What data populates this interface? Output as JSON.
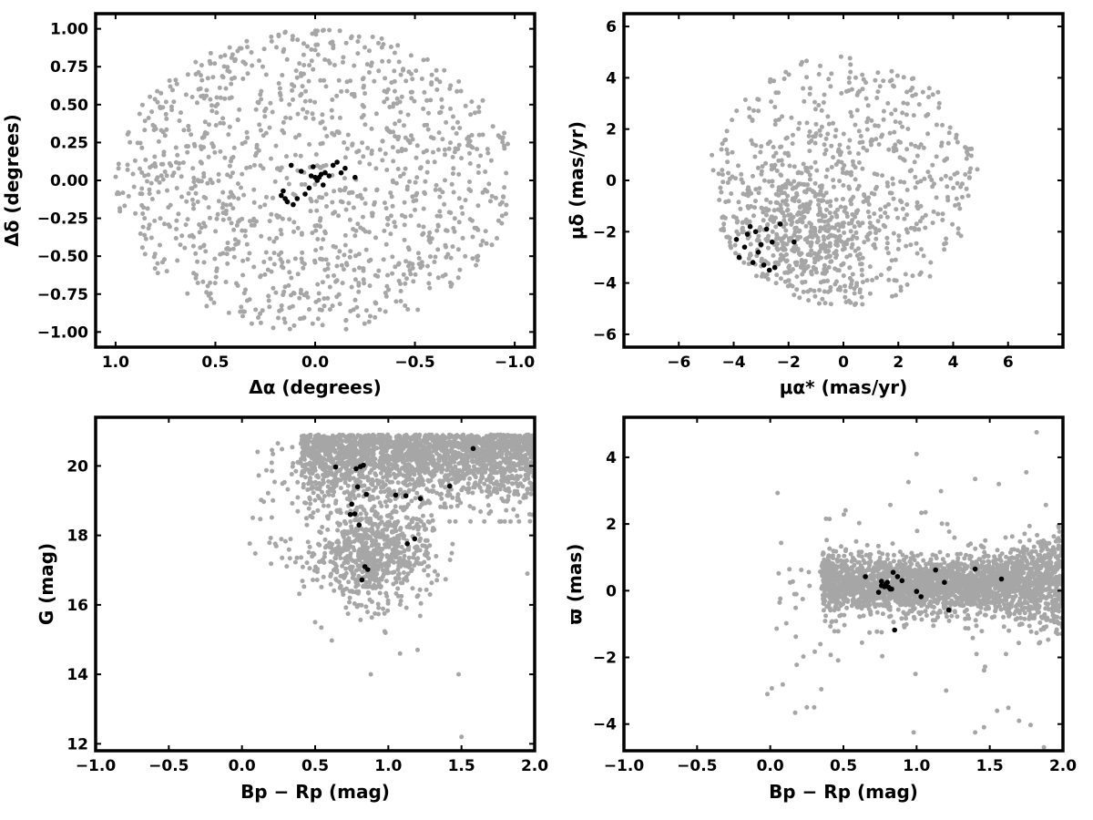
{
  "colors": {
    "field_stars": "#a6a6a6",
    "members": "#000000",
    "frame": "#000000",
    "background": "#ffffff"
  },
  "chart_data": [
    {
      "type": "scatter",
      "id": "sky-positions",
      "title": "",
      "xlabel": "Δα (degrees)",
      "ylabel": "Δδ (degrees)",
      "xlim": [
        1.1,
        -1.1
      ],
      "ylim": [
        -1.1,
        1.1
      ],
      "x_inverted": true,
      "xticks": [
        1.0,
        0.5,
        0.0,
        -0.5,
        -1.0
      ],
      "xtick_labels": [
        "1.0",
        "0.5",
        "0.0",
        "−0.5",
        "−1.0"
      ],
      "yticks": [
        1.0,
        0.75,
        0.5,
        0.25,
        0.0,
        -0.25,
        -0.5,
        -0.75,
        -1.0
      ],
      "ytick_labels": [
        "1.00",
        "0.75",
        "0.50",
        "0.25",
        "0.00",
        "−0.25",
        "−0.50",
        "−0.75",
        "−1.00"
      ],
      "field_distribution": {
        "shape": "disk",
        "center": [
          0.0,
          0.0
        ],
        "radius": 1.0,
        "n": 1200
      },
      "members": {
        "x": [
          0.17,
          0.15,
          0.14,
          0.11,
          0.09,
          0.05,
          0.03,
          -0.01,
          -0.02,
          -0.03,
          -0.05,
          -0.07,
          -0.09,
          -0.11,
          -0.13,
          -0.15,
          0.02,
          0.0,
          -0.2,
          0.12,
          0.07,
          0.01,
          -0.04,
          0.16
        ],
        "y": [
          -0.1,
          -0.12,
          -0.14,
          -0.16,
          -0.12,
          -0.09,
          -0.05,
          0.0,
          0.02,
          0.04,
          0.05,
          0.03,
          0.1,
          0.12,
          0.05,
          0.08,
          0.03,
          0.02,
          0.02,
          0.1,
          0.06,
          0.09,
          -0.03,
          -0.07
        ]
      }
    },
    {
      "type": "scatter",
      "id": "proper-motions",
      "title": "",
      "xlabel": "μα* (mas/yr)",
      "ylabel": "μδ (mas/yr)",
      "xlim": [
        -8,
        8
      ],
      "ylim": [
        -6.5,
        6.5
      ],
      "xticks": [
        -6,
        -4,
        -2,
        0,
        2,
        4,
        6
      ],
      "xtick_labels": [
        "−6",
        "−4",
        "−2",
        "0",
        "2",
        "4",
        "6"
      ],
      "yticks": [
        6,
        4,
        2,
        0,
        -2,
        -4,
        -6
      ],
      "ytick_labels": [
        "6",
        "4",
        "2",
        "0",
        "−2",
        "−4",
        "−6"
      ],
      "field_distribution": {
        "shape": "disk",
        "center": [
          0.0,
          0.0
        ],
        "radius": 4.9,
        "n": 1100,
        "dense_center": [
          -1.5,
          -2.0
        ]
      },
      "members": {
        "x": [
          -3.9,
          -3.8,
          -3.5,
          -3.4,
          -3.3,
          -3.1,
          -3.0,
          -2.9,
          -2.8,
          -2.6,
          -2.5,
          -2.3,
          -1.8,
          -3.6,
          -3.2,
          -2.7
        ],
        "y": [
          -2.3,
          -3.0,
          -2.1,
          -1.8,
          -3.2,
          -2.8,
          -2.5,
          -3.3,
          -1.9,
          -2.4,
          -3.4,
          -1.7,
          -2.4,
          -2.6,
          -2.0,
          -3.5
        ]
      }
    },
    {
      "type": "scatter",
      "id": "color-magnitude",
      "title": "",
      "xlabel": "Bp − Rp (mag)",
      "ylabel": "G (mag)",
      "xlim": [
        -1.0,
        2.0
      ],
      "ylim": [
        11.8,
        21.4
      ],
      "xticks": [
        -1.0,
        -0.5,
        0.0,
        0.5,
        1.0,
        1.5,
        2.0
      ],
      "xtick_labels": [
        "−1.0",
        "−0.5",
        "0.0",
        "0.5",
        "1.0",
        "1.5",
        "2.0"
      ],
      "yticks": [
        20,
        18,
        16,
        14,
        12
      ],
      "ytick_labels": [
        "20",
        "18",
        "16",
        "14",
        "12"
      ],
      "members": {
        "x": [
          0.64,
          0.78,
          0.81,
          0.83,
          0.85,
          0.75,
          0.77,
          0.8,
          0.84,
          0.86,
          0.82,
          0.79,
          1.05,
          1.12,
          1.22,
          1.42,
          1.58,
          1.13,
          1.18,
          0.74
        ],
        "y": [
          19.97,
          19.92,
          19.98,
          20.02,
          19.18,
          18.9,
          18.62,
          18.3,
          17.1,
          17.02,
          16.72,
          19.4,
          19.16,
          19.14,
          19.06,
          19.42,
          20.5,
          17.76,
          17.9,
          18.6
        ]
      }
    },
    {
      "type": "scatter",
      "id": "parallax-color",
      "title": "",
      "xlabel": "Bp − Rp (mag)",
      "ylabel": "ϖ (mas)",
      "xlim": [
        -1.0,
        2.0
      ],
      "ylim": [
        -4.8,
        5.2
      ],
      "xticks": [
        -1.0,
        -0.5,
        0.0,
        0.5,
        1.0,
        1.5,
        2.0
      ],
      "xtick_labels": [
        "−1.0",
        "−0.5",
        "0.0",
        "0.5",
        "1.0",
        "1.5",
        "2.0"
      ],
      "yticks": [
        4,
        2,
        0,
        -2,
        -4
      ],
      "ytick_labels": [
        "4",
        "2",
        "0",
        "−2",
        "−4"
      ],
      "members": {
        "x": [
          0.65,
          0.74,
          0.76,
          0.78,
          0.8,
          0.82,
          0.84,
          0.87,
          0.76,
          0.79,
          0.81,
          0.83,
          0.85,
          1.0,
          1.03,
          1.13,
          1.19,
          1.22,
          1.4,
          1.58,
          0.9
        ],
        "y": [
          0.42,
          -0.05,
          0.28,
          0.12,
          0.25,
          0.05,
          0.55,
          0.42,
          0.15,
          0.2,
          0.1,
          0.05,
          -1.18,
          -0.02,
          -0.18,
          0.62,
          0.25,
          -0.58,
          0.65,
          0.35,
          0.3
        ]
      }
    }
  ]
}
